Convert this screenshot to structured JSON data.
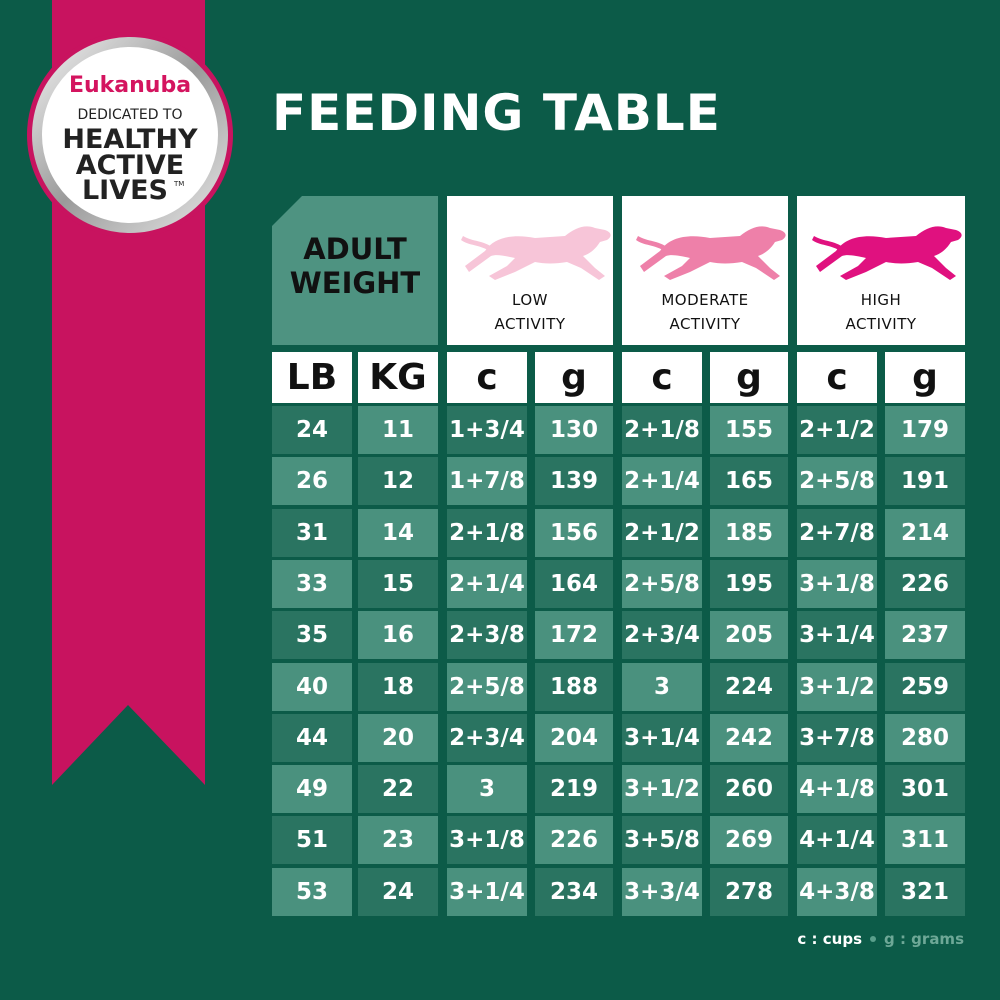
{
  "badge": {
    "brand": "Eukanuba",
    "line1": "DEDICATED TO",
    "line2": "HEALTHY",
    "line3": "ACTIVE",
    "line4": "LIVES",
    "mark": "TM"
  },
  "title": "FEEDING TABLE",
  "table": {
    "weight_header": [
      "ADULT",
      "WEIGHT"
    ],
    "activity_headers": [
      [
        "LOW",
        "ACTIVITY"
      ],
      [
        "MODERATE",
        "ACTIVITY"
      ],
      [
        "HIGH",
        "ACTIVITY"
      ]
    ],
    "units": [
      "LB",
      "KG",
      "c",
      "g",
      "c",
      "g",
      "c",
      "g"
    ],
    "rows": [
      [
        24,
        11,
        "1+3/4",
        130,
        "2+1/8",
        155,
        "2+1/2",
        179
      ],
      [
        26,
        12,
        "1+7/8",
        139,
        "2+1/4",
        165,
        "2+5/8",
        191
      ],
      [
        31,
        14,
        "2+1/8",
        156,
        "2+1/2",
        185,
        "2+7/8",
        214
      ],
      [
        33,
        15,
        "2+1/4",
        164,
        "2+5/8",
        195,
        "3+1/8",
        226
      ],
      [
        35,
        16,
        "2+3/8",
        172,
        "2+3/4",
        205,
        "3+1/4",
        237
      ],
      [
        40,
        18,
        "2+5/8",
        188,
        "3",
        224,
        "3+1/2",
        259
      ],
      [
        44,
        20,
        "2+3/4",
        204,
        "3+1/4",
        242,
        "3+7/8",
        280
      ],
      [
        49,
        22,
        "3",
        219,
        "3+1/2",
        260,
        "4+1/8",
        301
      ],
      [
        51,
        23,
        "3+1/8",
        226,
        "3+5/8",
        269,
        "4+1/4",
        311
      ],
      [
        53,
        24,
        "3+1/4",
        234,
        "3+3/4",
        278,
        "4+3/8",
        321
      ]
    ]
  },
  "legend": [
    "c : cups",
    "g : grams"
  ]
}
